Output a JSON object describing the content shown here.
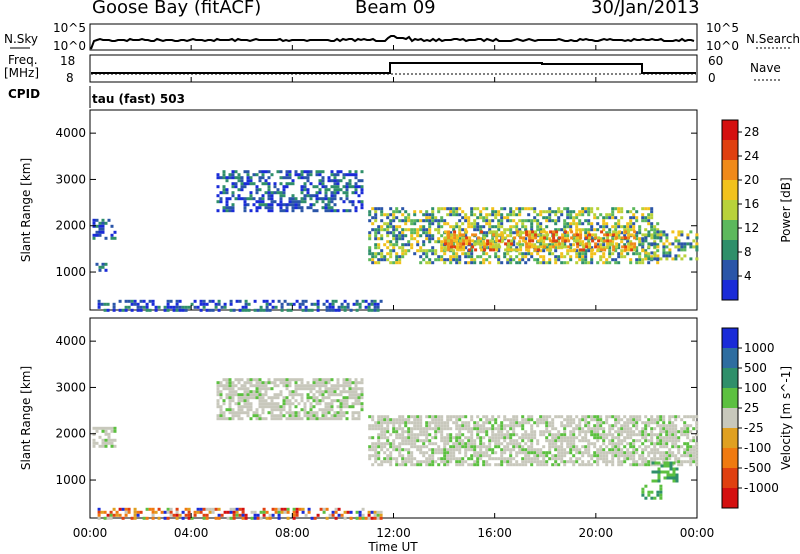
{
  "header": {
    "station": "Goose Bay (fitACF)",
    "beam": "Beam 09",
    "date": "30/Jan/2013"
  },
  "top_panels": {
    "nsky_label": "N.Sky",
    "nsearch_label": "N.Search",
    "noise_ticks": [
      "10^5",
      "10^0"
    ],
    "noise_ticks_right": [
      "10^5",
      "10^0"
    ],
    "freq_label_1": "Freq.",
    "freq_label_2": "[MHz]",
    "freq_ticks": [
      "18",
      "8"
    ],
    "nave_label": "Nave",
    "nave_ticks": [
      "60",
      "0"
    ],
    "cpid_label": "CPID",
    "cpid_text": "tau (fast) 503"
  },
  "chart_data": [
    {
      "type": "heatmap",
      "title": "",
      "xlabel": "Time UT",
      "ylabel": "Slant Range [km]",
      "xlim": [
        0,
        24
      ],
      "ylim": [
        180,
        4500
      ],
      "x_ticks": [
        "00:00",
        "04:00",
        "08:00",
        "12:00",
        "16:00",
        "20:00",
        "00:00"
      ],
      "y_ticks": [
        "1000",
        "2000",
        "3000",
        "4000"
      ],
      "colorbar": {
        "label": "Power [dB]",
        "ticks": [
          "4",
          "8",
          "12",
          "16",
          "20",
          "24",
          "28"
        ],
        "range": [
          0,
          30
        ]
      },
      "echo_regions": [
        {
          "t": [
            0.1,
            1.0
          ],
          "r": [
            1700,
            2150
          ],
          "level": "low"
        },
        {
          "t": [
            0.1,
            0.6
          ],
          "r": [
            1050,
            1200
          ],
          "level": "low"
        },
        {
          "t": [
            5.0,
            10.8
          ],
          "r": [
            2300,
            3200
          ],
          "level": "low"
        },
        {
          "t": [
            0.3,
            11.5
          ],
          "r": [
            200,
            400
          ],
          "level": "low"
        },
        {
          "t": [
            11.0,
            22.4
          ],
          "r": [
            1200,
            2400
          ],
          "level": "mid"
        },
        {
          "t": [
            14.0,
            21.5
          ],
          "r": [
            1500,
            1900
          ],
          "level": "high"
        },
        {
          "t": [
            21.8,
            24.0
          ],
          "r": [
            1300,
            1900
          ],
          "level": "mid"
        }
      ]
    },
    {
      "type": "heatmap",
      "title": "",
      "xlabel": "Time UT",
      "ylabel": "Slant Range [km]",
      "xlim": [
        0,
        24
      ],
      "ylim": [
        180,
        4500
      ],
      "x_ticks": [
        "00:00",
        "04:00",
        "08:00",
        "12:00",
        "16:00",
        "20:00",
        "00:00"
      ],
      "y_ticks": [
        "1000",
        "2000",
        "3000",
        "4000"
      ],
      "colorbar": {
        "label": "Velocity [m s^-1]",
        "ticks": [
          "1000",
          "500",
          "100",
          "25",
          "-25",
          "-100",
          "-500",
          "-1000"
        ]
      },
      "echo_regions": [
        {
          "t": [
            0.1,
            1.0
          ],
          "r": [
            1700,
            2150
          ],
          "level": "ground"
        },
        {
          "t": [
            5.0,
            10.8
          ],
          "r": [
            2300,
            3200
          ],
          "level": "ground"
        },
        {
          "t": [
            0.3,
            11.5
          ],
          "r": [
            200,
            400
          ],
          "level": "mixed"
        },
        {
          "t": [
            11.0,
            24.0
          ],
          "r": [
            1300,
            2400
          ],
          "level": "ground"
        },
        {
          "t": [
            22.2,
            23.2
          ],
          "r": [
            1000,
            1400
          ],
          "level": "positive"
        },
        {
          "t": [
            21.8,
            22.6
          ],
          "r": [
            600,
            900
          ],
          "level": "positive"
        }
      ]
    }
  ]
}
